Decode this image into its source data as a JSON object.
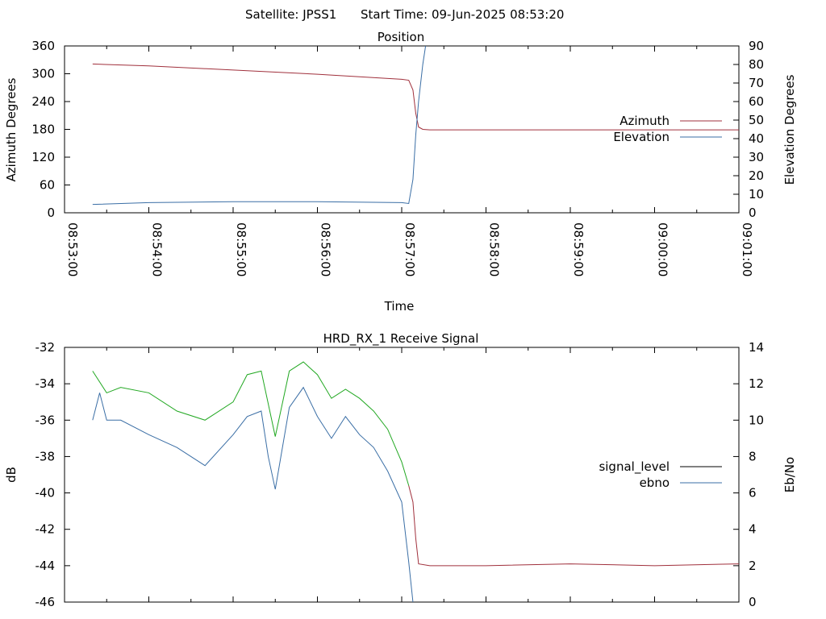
{
  "header": {
    "satellite": "Satellite: JPSS1",
    "start_time": "Start Time: 09-Jun-2025 08:53:20"
  },
  "chart_data": [
    {
      "type": "line",
      "title": "Position",
      "xlabel": "Time",
      "ylabel": "Azimuth Degrees",
      "y2label": "Elevation Degrees",
      "ylim": [
        0,
        360
      ],
      "y2lim": [
        0,
        90
      ],
      "yticks": [
        "0",
        "60",
        "120",
        "180",
        "240",
        "300",
        "360"
      ],
      "y2ticks": [
        "0",
        "10",
        "20",
        "30",
        "40",
        "50",
        "60",
        "70",
        "80",
        "90"
      ],
      "xlim": [
        "08:53:00",
        "09:01:00"
      ],
      "xticks": [
        "08:53:00",
        "08:54:00",
        "08:55:00",
        "08:56:00",
        "08:57:00",
        "08:58:00",
        "08:59:00",
        "09:00:00",
        "09:01:00"
      ],
      "legend_position": "right",
      "series": [
        {
          "name": "Azimuth",
          "axis": "left",
          "color": "#a0303c",
          "x": [
            "08:53:20",
            "08:54:00",
            "08:55:00",
            "08:56:00",
            "08:57:00",
            "08:57:05",
            "08:57:08",
            "08:57:10",
            "08:57:12",
            "08:57:15",
            "08:57:20",
            "08:58:00",
            "08:59:00",
            "09:00:00",
            "09:01:00"
          ],
          "values": [
            321,
            317,
            308,
            299,
            288,
            286,
            265,
            215,
            185,
            180,
            179,
            179,
            179,
            179,
            179
          ]
        },
        {
          "name": "Elevation",
          "axis": "right",
          "color": "#3a6ea5",
          "x": [
            "08:53:20",
            "08:54:00",
            "08:55:00",
            "08:56:00",
            "08:57:00",
            "08:57:05",
            "08:57:08",
            "08:57:10",
            "08:57:12",
            "08:57:15",
            "08:57:17"
          ],
          "values": [
            4.5,
            5.5,
            6,
            6,
            5.5,
            5,
            18,
            42,
            60,
            80,
            90
          ]
        }
      ]
    },
    {
      "type": "line",
      "title": "HRD_RX_1 Receive Signal",
      "ylabel": "dB",
      "y2label": "Eb/No",
      "ylim": [
        -46,
        -32
      ],
      "y2lim": [
        0,
        14
      ],
      "yticks": [
        "-46",
        "-44",
        "-42",
        "-40",
        "-38",
        "-36",
        "-34",
        "-32"
      ],
      "y2ticks": [
        "0",
        "2",
        "4",
        "6",
        "8",
        "10",
        "12",
        "14"
      ],
      "xlim": [
        "08:53:00",
        "09:01:00"
      ],
      "legend_position": "right",
      "series": [
        {
          "name": "signal_level",
          "axis": "left",
          "color": "#000000",
          "seg_colors": [
            "#22a822",
            "#a0303c"
          ],
          "seg_split": "08:57:05",
          "x": [
            "08:53:20",
            "08:53:30",
            "08:53:40",
            "08:54:00",
            "08:54:20",
            "08:54:40",
            "08:55:00",
            "08:55:10",
            "08:55:20",
            "08:55:30",
            "08:55:40",
            "08:55:50",
            "08:56:00",
            "08:56:10",
            "08:56:20",
            "08:56:30",
            "08:56:40",
            "08:56:50",
            "08:57:00",
            "08:57:05",
            "08:57:08",
            "08:57:10",
            "08:57:12",
            "08:57:20",
            "08:58:00",
            "08:59:00",
            "09:00:00",
            "09:01:00"
          ],
          "values": [
            -33.3,
            -34.5,
            -34.2,
            -34.5,
            -35.5,
            -36.0,
            -35.0,
            -33.5,
            -33.3,
            -36.9,
            -33.3,
            -32.8,
            -33.5,
            -34.8,
            -34.3,
            -34.8,
            -35.5,
            -36.5,
            -38.3,
            -39.6,
            -40.5,
            -42.5,
            -43.9,
            -44.0,
            -44.0,
            -43.9,
            -44.0,
            -43.9
          ]
        },
        {
          "name": "ebno",
          "axis": "right",
          "color": "#3a6ea5",
          "x": [
            "08:53:20",
            "08:53:25",
            "08:53:30",
            "08:53:40",
            "08:54:00",
            "08:54:20",
            "08:54:40",
            "08:55:00",
            "08:55:10",
            "08:55:20",
            "08:55:25",
            "08:55:30",
            "08:55:40",
            "08:55:50",
            "08:56:00",
            "08:56:10",
            "08:56:20",
            "08:56:30",
            "08:56:40",
            "08:56:50",
            "08:57:00",
            "08:57:05",
            "08:57:08"
          ],
          "values": [
            10,
            11.5,
            10,
            10,
            9.2,
            8.5,
            7.5,
            9.2,
            10.2,
            10.5,
            8,
            6.2,
            10.7,
            11.8,
            10.2,
            9,
            10.2,
            9.2,
            8.5,
            7.2,
            5.5,
            2.2,
            0
          ]
        }
      ]
    }
  ]
}
